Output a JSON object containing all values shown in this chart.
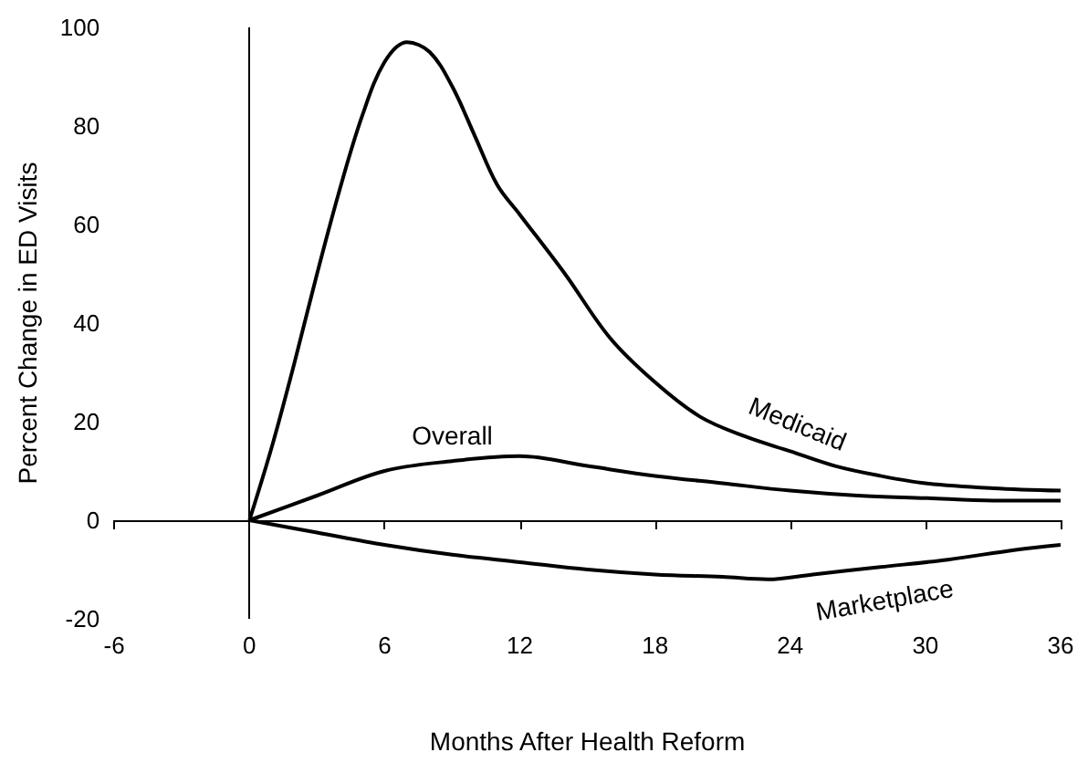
{
  "chart_data": {
    "type": "line",
    "xlabel": "Months After Health Reform",
    "ylabel": "Percent Change in ED Visits",
    "xlim": [
      -6,
      36
    ],
    "xticks": [
      -6,
      0,
      6,
      12,
      18,
      24,
      30,
      36
    ],
    "ylim": [
      -20,
      100
    ],
    "yticks": [
      -20,
      0,
      20,
      40,
      60,
      80,
      100
    ],
    "legend": false,
    "marker": "none",
    "line_style": "solid",
    "ref_lines": [
      {
        "axis": "x",
        "value": 0,
        "color": "#000000"
      }
    ],
    "series": [
      {
        "name": "Medicaid",
        "color": "#000000",
        "x": [
          0,
          1,
          2,
          3,
          4,
          5,
          6,
          7,
          8,
          9,
          10,
          11,
          12,
          14,
          16,
          18,
          20,
          22,
          24,
          26,
          28,
          30,
          33,
          36
        ],
        "values": [
          0,
          15,
          32,
          50,
          67,
          82,
          93,
          97,
          95,
          88,
          78,
          68,
          62,
          50,
          37,
          28,
          21,
          17,
          14,
          11,
          9,
          7.5,
          6.5,
          6
        ]
      },
      {
        "name": "Overall",
        "color": "#000000",
        "x": [
          0,
          3,
          6,
          9,
          12,
          15,
          18,
          21,
          24,
          27,
          30,
          33,
          36
        ],
        "values": [
          0,
          5,
          10,
          12,
          13,
          11,
          9,
          7.5,
          6,
          5,
          4.5,
          4,
          4
        ]
      },
      {
        "name": "Marketplace",
        "color": "#000000",
        "x": [
          0,
          3,
          6,
          9,
          12,
          15,
          18,
          21,
          23,
          25,
          28,
          31,
          34,
          36
        ],
        "values": [
          0,
          -2.5,
          -5,
          -7,
          -8.5,
          -10,
          -11,
          -11.5,
          -12,
          -11,
          -9.5,
          -8,
          -6,
          -5
        ]
      }
    ]
  }
}
